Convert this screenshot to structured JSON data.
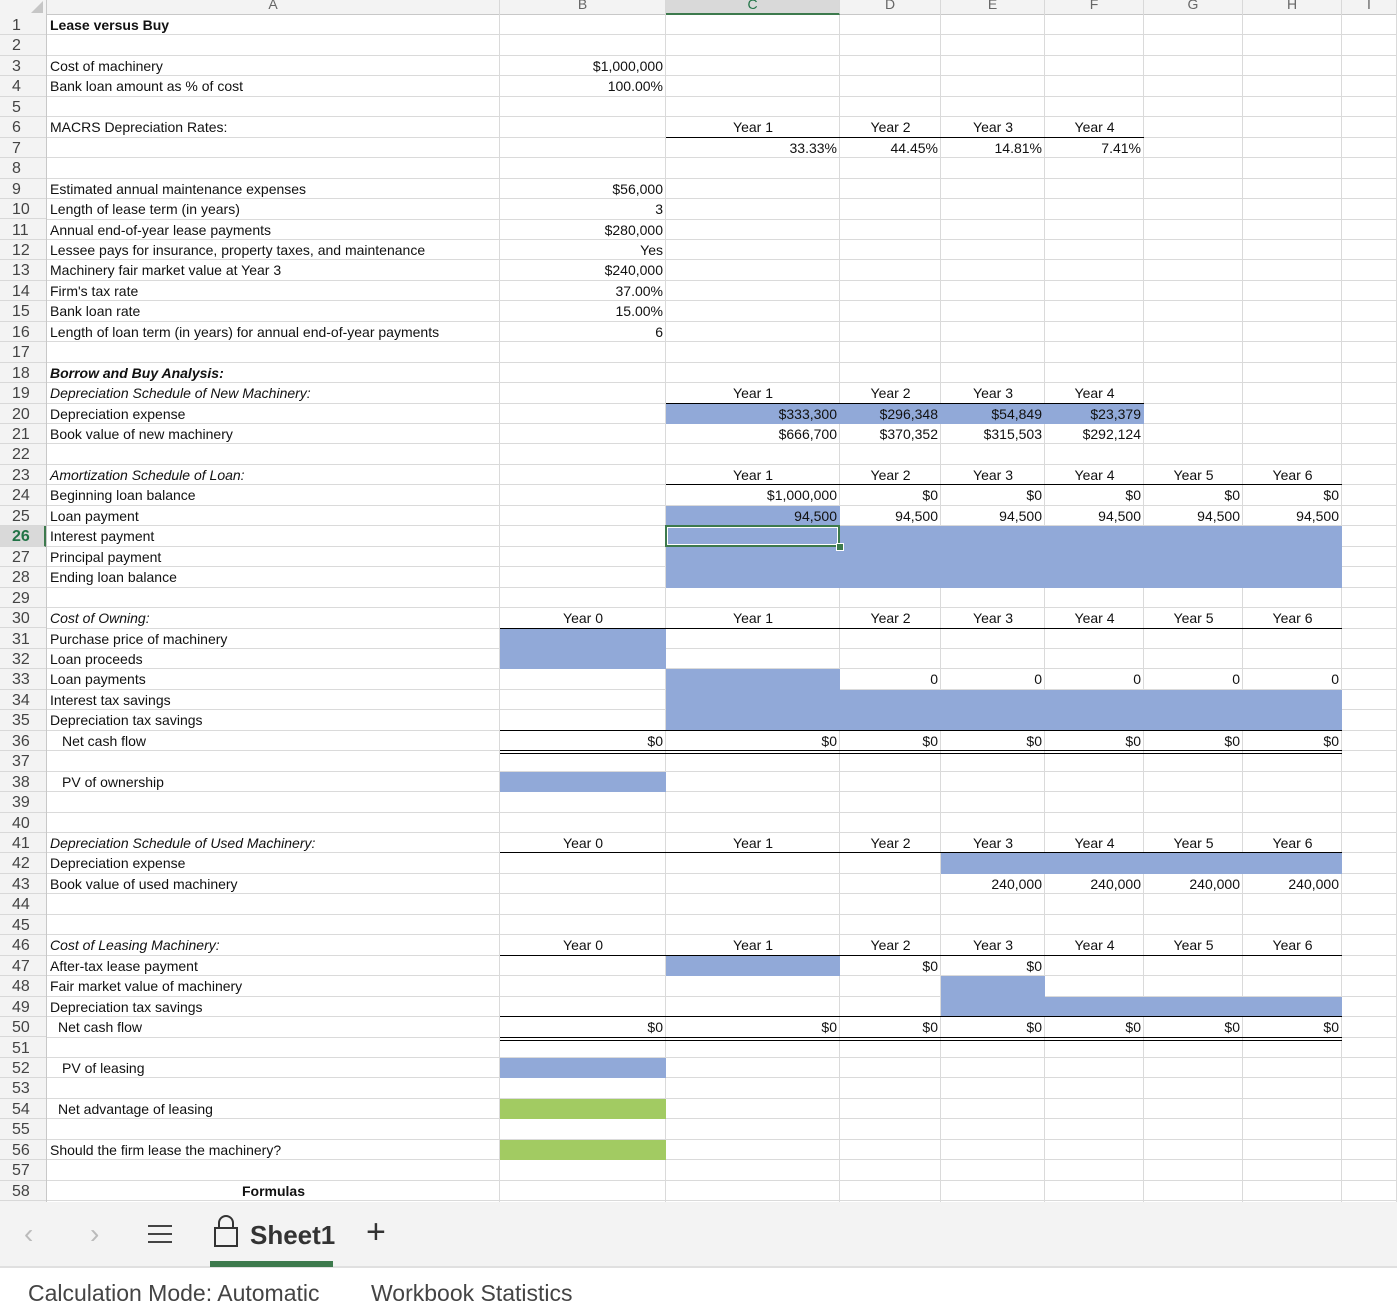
{
  "columns": {
    "headers": [
      "A",
      "B",
      "C",
      "D",
      "E",
      "F",
      "G",
      "H",
      "I"
    ],
    "active": "C"
  },
  "rows": {
    "count": 58,
    "active": 26
  },
  "title": "Lease versus Buy",
  "inputs": {
    "cost_label": "Cost of machinery",
    "cost_value": "$1,000,000",
    "loan_pct_label": "Bank loan amount as % of cost",
    "loan_pct_value": "100.00%",
    "macrs_label": "MACRS Depreciation Rates:",
    "macrs_years": [
      "Year 1",
      "Year 2",
      "Year 3",
      "Year 4"
    ],
    "macrs_rates": [
      "33.33%",
      "44.45%",
      "14.81%",
      "7.41%"
    ],
    "maint_label": "Estimated annual maintenance expenses",
    "maint_value": "$56,000",
    "lease_term_label": "Length of lease term (in years)",
    "lease_term_value": "3",
    "lease_pmt_label": "Annual end-of-year lease payments",
    "lease_pmt_value": "$280,000",
    "lessee_pays_label": "Lessee pays for insurance, property taxes, and maintenance",
    "lessee_pays_value": "Yes",
    "fmv_label": "Machinery fair market value at Year 3",
    "fmv_value": "$240,000",
    "tax_label": "Firm's tax rate",
    "tax_value": "37.00%",
    "loan_rate_label": "Bank loan rate",
    "loan_rate_value": "15.00%",
    "loan_term_label": "Length of loan term (in years) for annual end-of-year payments",
    "loan_term_value": "6"
  },
  "borrow_buy": {
    "heading": "Borrow and Buy Analysis:",
    "dep_new_heading": "Depreciation Schedule of New Machinery:",
    "years4": [
      "Year 1",
      "Year 2",
      "Year 3",
      "Year 4"
    ],
    "dep_exp_label": "Depreciation expense",
    "dep_exp_values": [
      "$333,300",
      "$296,348",
      "$54,849",
      "$23,379"
    ],
    "book_label": "Book value of new machinery",
    "book_values": [
      "$666,700",
      "$370,352",
      "$315,503",
      "$292,124"
    ],
    "amort_heading": "Amortization Schedule of Loan:",
    "years6": [
      "Year 1",
      "Year 2",
      "Year 3",
      "Year 4",
      "Year 5",
      "Year 6"
    ],
    "beg_bal_label": "Beginning loan balance",
    "beg_bal_values": [
      "$1,000,000",
      "$0",
      "$0",
      "$0",
      "$0",
      "$0"
    ],
    "loan_pmt_label": "Loan payment",
    "loan_pmt_values": [
      "94,500",
      "94,500",
      "94,500",
      "94,500",
      "94,500",
      "94,500"
    ],
    "interest_label": "Interest payment",
    "principal_label": "Principal payment",
    "end_bal_label": "Ending loan balance"
  },
  "owning": {
    "heading": "Cost of Owning:",
    "years7": [
      "Year 0",
      "Year 1",
      "Year 2",
      "Year 3",
      "Year 4",
      "Year 5",
      "Year 6"
    ],
    "purchase_label": "Purchase price of machinery",
    "proceeds_label": "Loan proceeds",
    "loan_payments_label": "Loan payments",
    "loan_payments_values": [
      "0",
      "0",
      "0",
      "0",
      "0"
    ],
    "int_tax_label": "Interest tax savings",
    "dep_tax_label": "Depreciation tax savings",
    "ncf_label": "Net cash flow",
    "ncf_values": [
      "$0",
      "$0",
      "$0",
      "$0",
      "$0",
      "$0",
      "$0"
    ],
    "pv_label": "PV of ownership"
  },
  "used": {
    "heading": "Depreciation Schedule of Used Machinery:",
    "years7": [
      "Year 0",
      "Year 1",
      "Year 2",
      "Year 3",
      "Year 4",
      "Year 5",
      "Year 6"
    ],
    "dep_exp_label": "Depreciation expense",
    "book_label": "Book value of used machinery",
    "book_values": [
      "240,000",
      "240,000",
      "240,000",
      "240,000"
    ]
  },
  "leasing": {
    "heading": "Cost of Leasing Machinery:",
    "years7": [
      "Year 0",
      "Year 1",
      "Year 2",
      "Year 3",
      "Year 4",
      "Year 5",
      "Year 6"
    ],
    "after_tax_label": "After-tax lease payment",
    "after_tax_values": [
      "$0",
      "$0"
    ],
    "fmv_label": "Fair market value of machinery",
    "dep_tax_label": "Depreciation tax savings",
    "ncf_label": "Net cash flow",
    "ncf_values": [
      "$0",
      "$0",
      "$0",
      "$0",
      "$0",
      "$0",
      "$0"
    ],
    "pv_label": "PV of leasing",
    "nal_label": "Net advantage of leasing",
    "should_label": "Should the firm lease the machinery?",
    "formulas_label": "Formulas"
  },
  "colors": {
    "input_blue": "#91a9d8",
    "answer_green": "#a2cb62",
    "active_green": "#3d7a4d"
  },
  "tabbar": {
    "prev_icon": "‹",
    "next_icon": "›",
    "menu_icon": "☰",
    "sheet_name": "Sheet1",
    "add_icon": "+"
  },
  "statusbar": {
    "calc_mode": "Calculation Mode: Automatic",
    "stats": "Workbook Statistics"
  }
}
